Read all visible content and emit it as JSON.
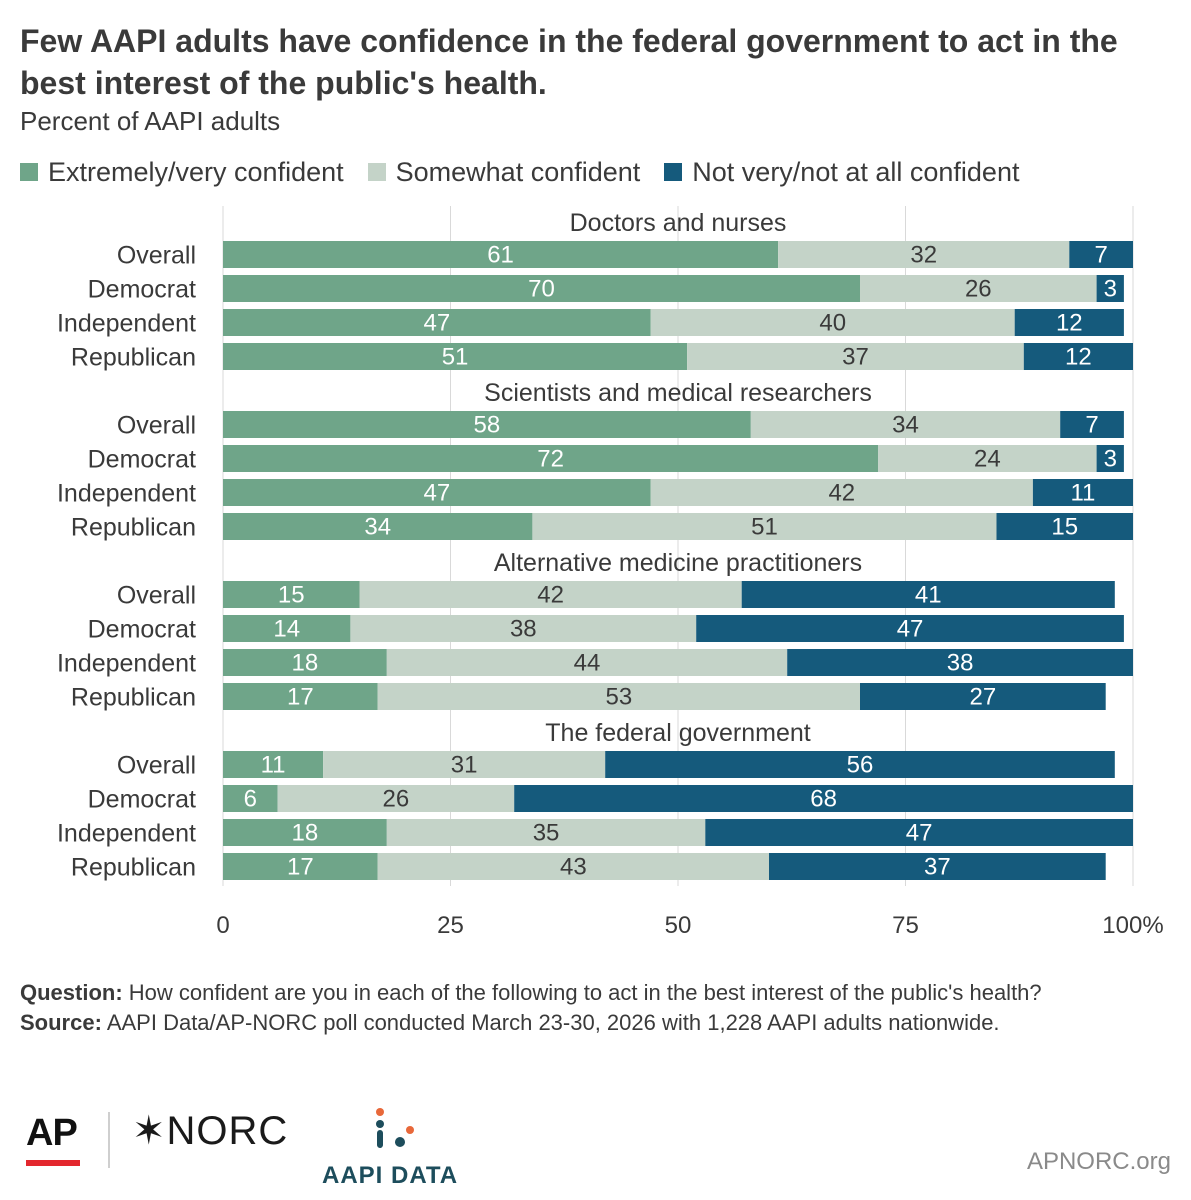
{
  "title": "Few AAPI adults have confidence in the federal government to act in the best interest of the public's health.",
  "subtitle": "Percent of AAPI adults",
  "colors": {
    "extremely_very": "#6fa589",
    "somewhat": "#c4d3c8",
    "not_very": "#155a7c",
    "grid": "#d9d9d9",
    "text": "#3a3a3a"
  },
  "chart_data": {
    "type": "bar",
    "orientation": "horizontal-stacked",
    "legend": [
      "Extremely/very confident",
      "Somewhat confident",
      "Not very/not at all confident"
    ],
    "legend_position": "top",
    "xlim": [
      0,
      100
    ],
    "xticks": [
      "0",
      "25",
      "50",
      "75",
      "100"
    ],
    "x_unit": "%",
    "grid": true,
    "groups": [
      {
        "title": "Doctors and nurses",
        "rows": [
          {
            "label": "Overall",
            "values": [
              61,
              32,
              7
            ]
          },
          {
            "label": "Democrat",
            "values": [
              70,
              26,
              3
            ]
          },
          {
            "label": "Independent",
            "values": [
              47,
              40,
              12
            ]
          },
          {
            "label": "Republican",
            "values": [
              51,
              37,
              12
            ]
          }
        ]
      },
      {
        "title": "Scientists and medical researchers",
        "rows": [
          {
            "label": "Overall",
            "values": [
              58,
              34,
              7
            ]
          },
          {
            "label": "Democrat",
            "values": [
              72,
              24,
              3
            ]
          },
          {
            "label": "Independent",
            "values": [
              47,
              42,
              11
            ]
          },
          {
            "label": "Republican",
            "values": [
              34,
              51,
              15
            ]
          }
        ]
      },
      {
        "title": "Alternative medicine practitioners",
        "rows": [
          {
            "label": "Overall",
            "values": [
              15,
              42,
              41
            ]
          },
          {
            "label": "Democrat",
            "values": [
              14,
              38,
              47
            ]
          },
          {
            "label": "Independent",
            "values": [
              18,
              44,
              38
            ]
          },
          {
            "label": "Republican",
            "values": [
              17,
              53,
              27
            ]
          }
        ]
      },
      {
        "title": "The federal government",
        "rows": [
          {
            "label": "Overall",
            "values": [
              11,
              31,
              56
            ]
          },
          {
            "label": "Democrat",
            "values": [
              6,
              26,
              68
            ]
          },
          {
            "label": "Independent",
            "values": [
              18,
              35,
              47
            ]
          },
          {
            "label": "Republican",
            "values": [
              17,
              43,
              37
            ]
          }
        ]
      }
    ]
  },
  "notes": {
    "question_label": "Question:",
    "question_text": " How confident are you in each of the following to act in the best interest of the public's health?",
    "source_label": "Source:",
    "source_text": " AAPI Data/AP-NORC poll conducted March 23-30, 2026 with 1,228 AAPI adults nationwide."
  },
  "logos": {
    "ap": "AP",
    "norc": "✶NORC",
    "aapi_data": "AAPI DATA"
  },
  "site": "APNORC.org"
}
